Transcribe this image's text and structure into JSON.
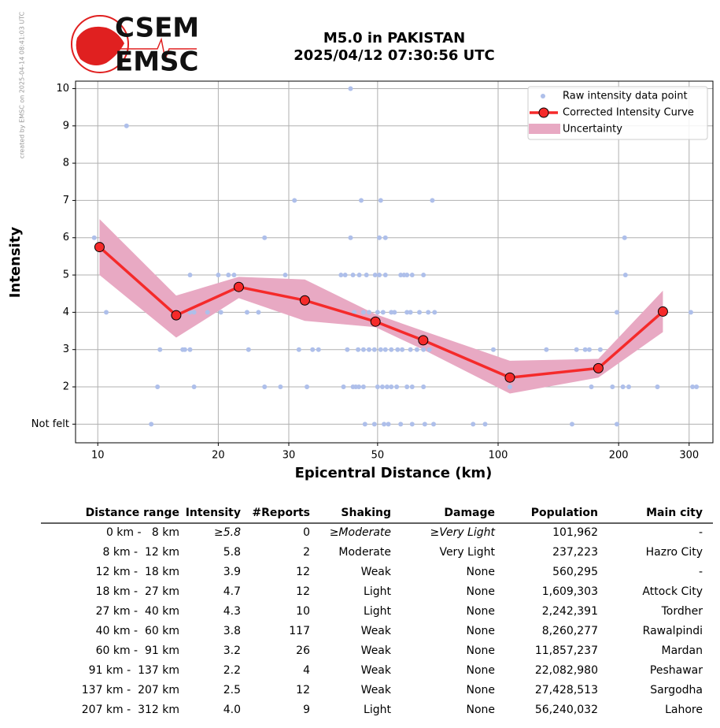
{
  "credit": "created by EMSC on 2025-04-14 08:41:03 UTC",
  "logo": {
    "top": "CSEM",
    "bottom": "EMSC"
  },
  "chart_data": {
    "type": "scatter",
    "title": "M5.0 in PAKISTAN",
    "subtitle": "2025/04/12 07:30:56 UTC",
    "x_label": "Epicentral Distance (km)",
    "y_label": "Intensity",
    "x_scale": "log",
    "xlim": [
      8.8,
      344
    ],
    "xticks": [
      10,
      20,
      30,
      50,
      100,
      200,
      300
    ],
    "ylim": [
      0.5,
      10.2
    ],
    "yticks": [
      {
        "value": 1,
        "label": "Not felt"
      },
      2,
      3,
      4,
      5,
      6,
      7,
      8,
      9,
      10
    ],
    "grid": true,
    "legend": "top-right",
    "series": [
      {
        "name": "Raw intensity data point",
        "type": "scatter",
        "color": "#aebfea",
        "x": [
          42.8,
          11.8,
          31,
          45.5,
          50.9,
          68.5,
          9.8,
          26.1,
          42.8,
          50.5,
          52.3,
          207,
          17,
          20,
          21.2,
          21.9,
          29.4,
          40.5,
          41.5,
          43.4,
          45,
          46.9,
          49.3,
          50.5,
          52.3,
          57.1,
          58.2,
          59.2,
          61,
          65.1,
          208,
          10.5,
          17,
          17.4,
          18.8,
          20.3,
          23.6,
          25.2,
          43.7,
          46.1,
          47.6,
          50,
          51.6,
          54.1,
          55.1,
          59.2,
          60.4,
          63.6,
          66.9,
          69.4,
          198,
          303,
          14.3,
          16.3,
          16.5,
          17,
          23.8,
          31.8,
          34.4,
          35.6,
          42,
          44.7,
          46.1,
          47.6,
          49.1,
          50.9,
          52.3,
          54.1,
          56.1,
          57.6,
          60.4,
          62.7,
          65.1,
          67.3,
          97.3,
          132,
          157,
          165,
          169,
          180,
          14.1,
          17.4,
          26.1,
          28.6,
          33.3,
          41.1,
          43.4,
          44.1,
          44.9,
          46.1,
          50,
          51.4,
          52.8,
          54.1,
          55.8,
          59.2,
          61,
          65.1,
          107,
          171,
          193,
          205,
          212,
          250,
          306,
          313,
          13.6,
          46.5,
          49.1,
          51.9,
          53.2,
          57.1,
          61,
          65.6,
          69,
          86.6,
          92.8,
          153,
          198
        ],
        "values": [
          10,
          9,
          7,
          7,
          7,
          7,
          6,
          6,
          6,
          6,
          6,
          6,
          5,
          5,
          5,
          5,
          5,
          5,
          5,
          5,
          5,
          5,
          5,
          5,
          5,
          5,
          5,
          5,
          5,
          5,
          5,
          4,
          4,
          4,
          4,
          4,
          4,
          4,
          4,
          4,
          4,
          4,
          4,
          4,
          4,
          4,
          4,
          4,
          4,
          4,
          4,
          4,
          3,
          3,
          3,
          3,
          3,
          3,
          3,
          3,
          3,
          3,
          3,
          3,
          3,
          3,
          3,
          3,
          3,
          3,
          3,
          3,
          3,
          3,
          3,
          3,
          3,
          3,
          3,
          3,
          2,
          2,
          2,
          2,
          2,
          2,
          2,
          2,
          2,
          2,
          2,
          2,
          2,
          2,
          2,
          2,
          2,
          2,
          2,
          2,
          2,
          2,
          2,
          2,
          2,
          2,
          1,
          1,
          1,
          1,
          1,
          1,
          1,
          1,
          1,
          1,
          1,
          1,
          1
        ]
      },
      {
        "name": "Uncertainty",
        "type": "band",
        "color": "#e8a9c3",
        "x": [
          10.1,
          15.7,
          22.5,
          32.9,
          49.4,
          65,
          107,
          178,
          258
        ],
        "upper": [
          6.5,
          4.45,
          4.95,
          4.88,
          3.95,
          3.5,
          2.7,
          2.75,
          4.58
        ],
        "lower": [
          5.0,
          3.32,
          4.38,
          3.77,
          3.6,
          3.0,
          1.82,
          2.25,
          3.47
        ]
      },
      {
        "name": "Corrected Intensity Curve",
        "type": "line",
        "color": "#f52a2a",
        "x": [
          10.1,
          15.7,
          22.5,
          32.9,
          49.4,
          65,
          107,
          178,
          258
        ],
        "values": [
          5.75,
          3.92,
          4.68,
          4.32,
          3.75,
          3.25,
          2.25,
          2.5,
          4.02
        ]
      }
    ]
  },
  "table": {
    "header": [
      "Distance range",
      "Intensity",
      "#Reports",
      "Shaking",
      "Damage",
      "Population",
      "Main city"
    ],
    "rows": [
      [
        "0 km -   8 km",
        "≥5.8",
        "0",
        "≥Moderate",
        "≥Very Light",
        "101,962",
        "-"
      ],
      [
        "8 km -  12 km",
        "5.8",
        "2",
        "Moderate",
        "Very Light",
        "237,223",
        "Hazro City"
      ],
      [
        "12 km -  18 km",
        "3.9",
        "12",
        "Weak",
        "None",
        "560,295",
        "-"
      ],
      [
        "18 km -  27 km",
        "4.7",
        "12",
        "Light",
        "None",
        "1,609,303",
        "Attock City"
      ],
      [
        "27 km -  40 km",
        "4.3",
        "10",
        "Light",
        "None",
        "2,242,391",
        "Tordher"
      ],
      [
        "40 km -  60 km",
        "3.8",
        "117",
        "Weak",
        "None",
        "8,260,277",
        "Rawalpindi"
      ],
      [
        "60 km -  91 km",
        "3.2",
        "26",
        "Weak",
        "None",
        "11,857,237",
        "Mardan"
      ],
      [
        "91 km -  137 km",
        "2.2",
        "4",
        "Weak",
        "None",
        "22,082,980",
        "Peshawar"
      ],
      [
        "137 km -  207 km",
        "2.5",
        "12",
        "Weak",
        "None",
        "27,428,513",
        "Sargodha"
      ],
      [
        "207 km -  312 km",
        "4.0",
        "9",
        "Light",
        "None",
        "56,240,032",
        "Lahore"
      ]
    ]
  }
}
